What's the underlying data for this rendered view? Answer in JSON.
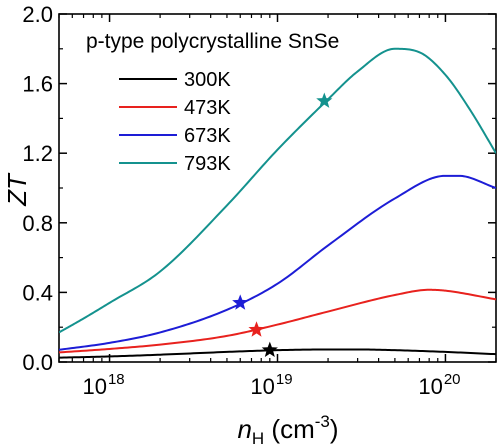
{
  "chart_data": {
    "type": "line",
    "annotation": "p-type polycrystalline SnSe",
    "xlabel": {
      "var": "n",
      "sub": "H",
      "unit": " (cm",
      "sup": "-3",
      "close": ")"
    },
    "ylabel": "ZT",
    "xscale": "log",
    "xlim": [
      5e+17,
      2e+20
    ],
    "ylim": [
      0,
      2.0
    ],
    "yticks": [
      0.0,
      0.4,
      0.8,
      1.2,
      1.6,
      2.0
    ],
    "ytick_labels": [
      "0.0",
      "0.4",
      "0.8",
      "1.2",
      "1.6",
      "2.0"
    ],
    "xticks": [
      {
        "value": 1e+18,
        "base": "10",
        "exp": "18"
      },
      {
        "value": 1e+19,
        "base": "10",
        "exp": "19"
      },
      {
        "value": 1e+20,
        "base": "10",
        "exp": "20"
      }
    ],
    "grid": false,
    "legend_position": "top-left",
    "series": [
      {
        "name": "300K",
        "color": "#000000",
        "x": [
          5e+17,
          1e+18,
          2e+18,
          5e+18,
          1e+19,
          2e+19,
          3e+19,
          5e+19,
          1e+20,
          2e+20
        ],
        "y": [
          0.025,
          0.032,
          0.042,
          0.058,
          0.068,
          0.072,
          0.072,
          0.068,
          0.058,
          0.045
        ],
        "marker": {
          "x": 9e+18,
          "y": 0.068
        }
      },
      {
        "name": "473K",
        "color": "#e8221e",
        "x": [
          5e+17,
          1e+18,
          2e+18,
          5e+18,
          1e+19,
          2e+19,
          5e+19,
          8e+19,
          1e+20,
          2e+20
        ],
        "y": [
          0.055,
          0.075,
          0.1,
          0.15,
          0.215,
          0.29,
          0.385,
          0.415,
          0.41,
          0.36
        ],
        "marker": {
          "x": 7.5e+18,
          "y": 0.185
        }
      },
      {
        "name": "673K",
        "color": "#1d1dd6",
        "x": [
          5e+17,
          1e+18,
          2e+18,
          5e+18,
          1e+19,
          2e+19,
          5e+19,
          1e+20,
          1.2e+20,
          2e+20
        ],
        "y": [
          0.07,
          0.11,
          0.17,
          0.3,
          0.45,
          0.67,
          0.94,
          1.07,
          1.07,
          1.0
        ],
        "marker": {
          "x": 6e+18,
          "y": 0.34
        }
      },
      {
        "name": "793K",
        "color": "#14928e",
        "x": [
          5e+17,
          7e+17,
          1e+18,
          2e+18,
          5e+18,
          1e+19,
          2e+19,
          3e+19,
          5e+19,
          7e+19,
          1e+20,
          1.4e+20,
          2e+20
        ],
        "y": [
          0.17,
          0.25,
          0.34,
          0.52,
          0.9,
          1.22,
          1.51,
          1.67,
          1.8,
          1.78,
          1.65,
          1.45,
          1.2
        ],
        "marker": {
          "x": 1.9e+19,
          "y": 1.5
        }
      }
    ]
  }
}
